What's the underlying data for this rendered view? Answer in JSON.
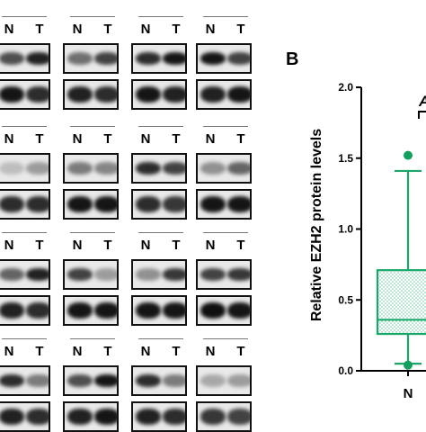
{
  "panel_b_label": "B",
  "blot_lane_labels": [
    "N",
    "T"
  ],
  "chart_data": {
    "type": "box",
    "ylabel": "Relative EZH2 protein levels",
    "xlabel": "",
    "ylim": [
      0.0,
      2.0
    ],
    "yticks": [
      "0.0",
      "0.5",
      "1.0",
      "1.5",
      "2.0"
    ],
    "categories": [
      "N"
    ],
    "boxes": [
      {
        "category": "N",
        "whisker_low": 0.05,
        "q1": 0.26,
        "median": 0.36,
        "q3": 0.71,
        "whisker_high": 1.41,
        "outliers": [
          1.52,
          0.04
        ]
      }
    ],
    "significance_label": "A",
    "colors": {
      "box": "#1aa86a",
      "dots": "#13a05e"
    }
  }
}
